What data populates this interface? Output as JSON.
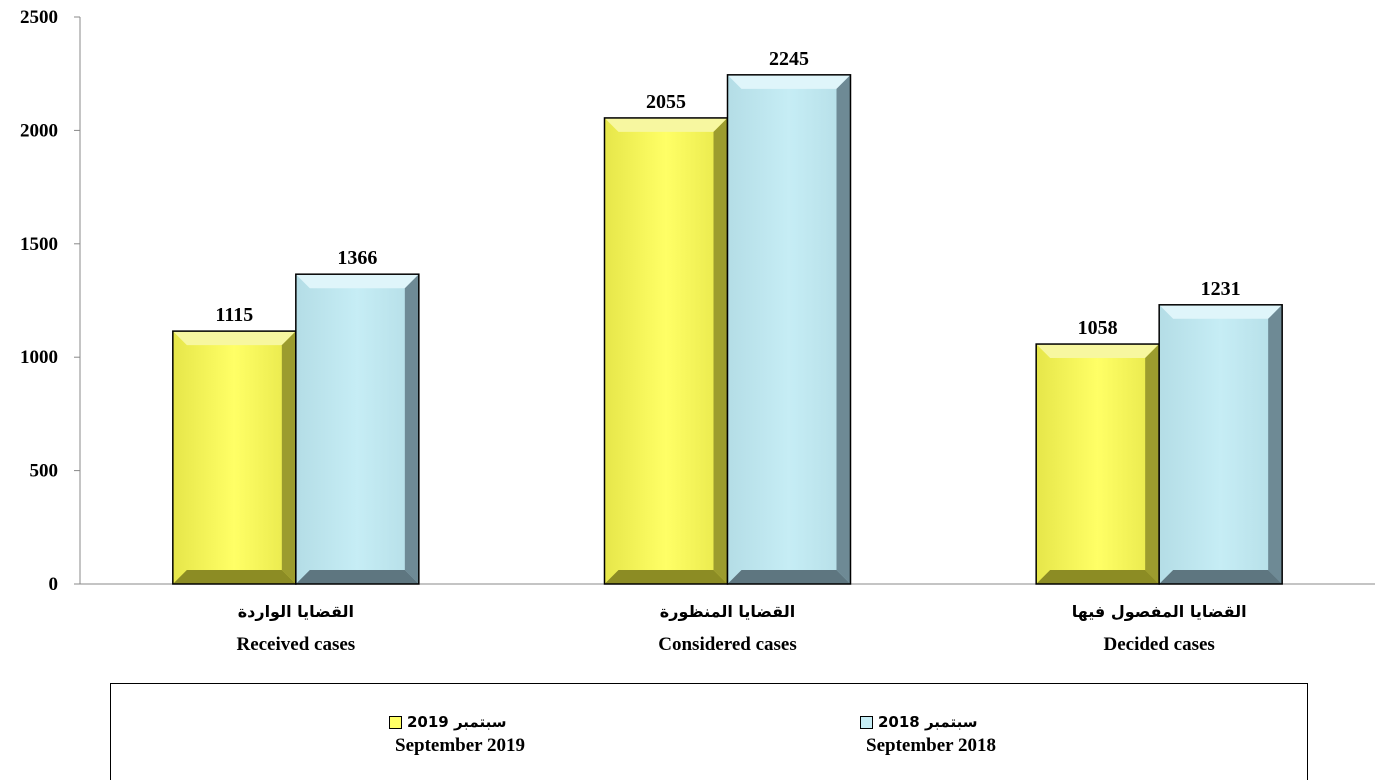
{
  "chart_data": {
    "type": "bar",
    "categories": [
      {
        "ar": "القضايا الواردة",
        "en": "Received cases"
      },
      {
        "ar": "القضايا المنظورة",
        "en": "Considered cases"
      },
      {
        "ar": "القضايا المفصول فيها",
        "en": "Decided cases"
      }
    ],
    "series": [
      {
        "name": "سبتمبر 2019",
        "name_en": "September 2019",
        "values": [
          1115,
          2055,
          1058
        ],
        "color": "#FFFF66"
      },
      {
        "name": "سبتمبر 2018",
        "name_en": "September 2018",
        "values": [
          1366,
          2245,
          1231
        ],
        "color": "#C6EDF5"
      }
    ],
    "ylim": [
      0,
      2500
    ],
    "yticks": [
      0,
      500,
      1000,
      1500,
      2000,
      2500
    ],
    "grid": false,
    "legend_position": "bottom"
  },
  "legend": {
    "items": [
      {
        "ar": "سبتمبر 2019",
        "en": "September 2019",
        "color": "#FFFF66"
      },
      {
        "ar": "سبتمبر 2018",
        "en": "September 2018",
        "color": "#C6EDF5"
      }
    ]
  }
}
